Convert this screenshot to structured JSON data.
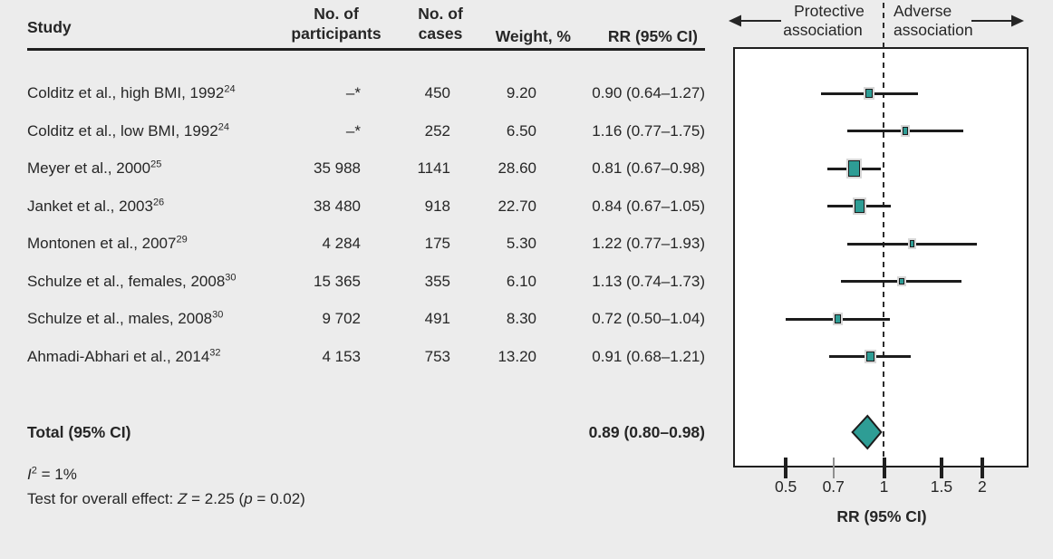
{
  "figure": {
    "background_color": "#ececec",
    "accent_teal": "#2e9d95",
    "ink_color": "#262626"
  },
  "table": {
    "headers": {
      "study": "Study",
      "participants_line1": "No. of",
      "participants_line2": "participants",
      "cases_line1": "No. of",
      "cases_line2": "cases",
      "weight": "Weight, %",
      "rr": "RR (95% CI)"
    }
  },
  "studies": [
    {
      "name": "Colditz et al., high BMI, 1992",
      "ref": "24",
      "participants": "–*",
      "cases": "450",
      "weight": "9.20",
      "weight_pct": 9.2,
      "rr_text": "0.90 (0.64–1.27)",
      "rr": 0.9,
      "ci_low": 0.64,
      "ci_high": 1.27
    },
    {
      "name": "Colditz et al., low BMI, 1992",
      "ref": "24",
      "participants": "–*",
      "cases": "252",
      "weight": "6.50",
      "weight_pct": 6.5,
      "rr_text": "1.16 (0.77–1.75)",
      "rr": 1.16,
      "ci_low": 0.77,
      "ci_high": 1.75
    },
    {
      "name": "Meyer et al., 2000",
      "ref": "25",
      "participants": "35 988",
      "cases": "1141",
      "weight": "28.60",
      "weight_pct": 28.6,
      "rr_text": "0.81 (0.67–0.98)",
      "rr": 0.81,
      "ci_low": 0.67,
      "ci_high": 0.98
    },
    {
      "name": "Janket et al., 2003",
      "ref": "26",
      "participants": "38 480",
      "cases": "918",
      "weight": "22.70",
      "weight_pct": 22.7,
      "rr_text": "0.84 (0.67–1.05)",
      "rr": 0.84,
      "ci_low": 0.67,
      "ci_high": 1.05
    },
    {
      "name": "Montonen et al., 2007",
      "ref": "29",
      "participants": "4 284",
      "cases": "175",
      "weight": "5.30",
      "weight_pct": 5.3,
      "rr_text": "1.22 (0.77–1.93)",
      "rr": 1.22,
      "ci_low": 0.77,
      "ci_high": 1.93
    },
    {
      "name": "Schulze et al., females, 2008",
      "ref": "30",
      "participants": "15 365",
      "cases": "355",
      "weight": "6.10",
      "weight_pct": 6.1,
      "rr_text": "1.13 (0.74–1.73)",
      "rr": 1.13,
      "ci_low": 0.74,
      "ci_high": 1.73
    },
    {
      "name": "Schulze et al., males, 2008",
      "ref": "30",
      "participants": "9 702",
      "cases": "491",
      "weight": "8.30",
      "weight_pct": 8.3,
      "rr_text": "0.72 (0.50–1.04)",
      "rr": 0.72,
      "ci_low": 0.5,
      "ci_high": 1.04
    },
    {
      "name": "Ahmadi-Abhari et al., 2014",
      "ref": "32",
      "participants": "4 153",
      "cases": "753",
      "weight": "13.20",
      "weight_pct": 13.2,
      "rr_text": "0.91 (0.68–1.21)",
      "rr": 0.91,
      "ci_low": 0.68,
      "ci_high": 1.21
    }
  ],
  "total": {
    "label": "Total (95% CI)",
    "rr_text": "0.89 (0.80–0.98)",
    "rr": 0.89,
    "ci_low": 0.8,
    "ci_high": 0.98
  },
  "stats": {
    "i2": {
      "symbol": "I",
      "sup": "2",
      "rest": " = 1%"
    },
    "test": {
      "prefix": "Test for overall effect: ",
      "z": "Z",
      "mid": " = 2.25 (",
      "p": "p",
      "end": " = 0.02)"
    }
  },
  "plot": {
    "direction_labels": {
      "protective_line1": "Protective",
      "protective_line2": "association",
      "adverse_line1": "Adverse",
      "adverse_line2": "association"
    },
    "axis_label": "RR (95% CI)",
    "reference_value": 1,
    "ticks": [
      {
        "label": "0.5",
        "value": 0.5,
        "minor": false
      },
      {
        "label": "0.7",
        "value": 0.7,
        "minor": true
      },
      {
        "label": "1",
        "value": 1,
        "minor": false
      },
      {
        "label": "1.5",
        "value": 1.5,
        "minor": false
      },
      {
        "label": "2",
        "value": 2,
        "minor": false
      }
    ]
  },
  "chart_data": {
    "type": "scatter",
    "subtype": "forest-plot-meta-analysis",
    "xlabel": "RR (95% CI)",
    "x_scale": "log",
    "x_ticks": [
      0.5,
      0.7,
      1,
      1.5,
      2
    ],
    "x_range": [
      0.42,
      2.4
    ],
    "reference_line_x": 1,
    "grid": false,
    "legend": "none",
    "direction_annotations": {
      "left_of_1": "Protective association",
      "right_of_1": "Adverse association"
    },
    "series": [
      {
        "study": "Colditz et al., high BMI, 1992 (ref 24)",
        "participants": null,
        "cases": 450,
        "weight_pct": 9.2,
        "rr": 0.9,
        "ci": [
          0.64,
          1.27
        ]
      },
      {
        "study": "Colditz et al., low BMI, 1992 (ref 24)",
        "participants": null,
        "cases": 252,
        "weight_pct": 6.5,
        "rr": 1.16,
        "ci": [
          0.77,
          1.75
        ]
      },
      {
        "study": "Meyer et al., 2000 (ref 25)",
        "participants": 35988,
        "cases": 1141,
        "weight_pct": 28.6,
        "rr": 0.81,
        "ci": [
          0.67,
          0.98
        ]
      },
      {
        "study": "Janket et al., 2003 (ref 26)",
        "participants": 38480,
        "cases": 918,
        "weight_pct": 22.7,
        "rr": 0.84,
        "ci": [
          0.67,
          1.05
        ]
      },
      {
        "study": "Montonen et al., 2007 (ref 29)",
        "participants": 4284,
        "cases": 175,
        "weight_pct": 5.3,
        "rr": 1.22,
        "ci": [
          0.77,
          1.93
        ]
      },
      {
        "study": "Schulze et al., females, 2008 (ref 30)",
        "participants": 15365,
        "cases": 355,
        "weight_pct": 6.1,
        "rr": 1.13,
        "ci": [
          0.74,
          1.73
        ]
      },
      {
        "study": "Schulze et al., males, 2008 (ref 30)",
        "participants": 9702,
        "cases": 491,
        "weight_pct": 8.3,
        "rr": 0.72,
        "ci": [
          0.5,
          1.04
        ]
      },
      {
        "study": "Ahmadi-Abhari et al., 2014 (ref 32)",
        "participants": 4153,
        "cases": 753,
        "weight_pct": 13.2,
        "rr": 0.91,
        "ci": [
          0.68,
          1.21
        ]
      }
    ],
    "summary": {
      "label": "Total (95% CI)",
      "rr": 0.89,
      "ci": [
        0.8,
        0.98
      ],
      "marker": "diamond"
    },
    "heterogeneity_i2_pct": 1,
    "overall_effect": {
      "z": 2.25,
      "p": 0.02
    }
  }
}
